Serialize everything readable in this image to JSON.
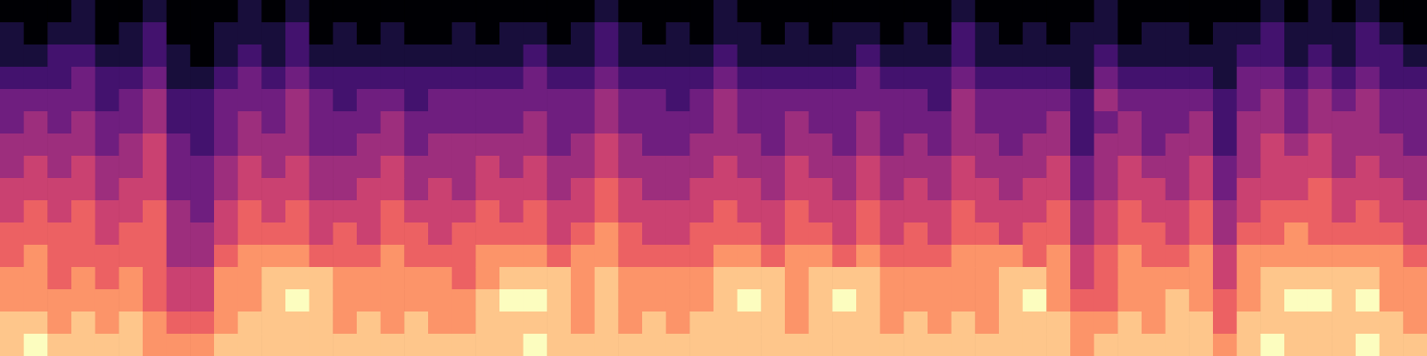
{
  "chart_data": {
    "type": "heatmap",
    "tick_labels": false,
    "values": [
      [
        0,
        0,
        0,
        1,
        0,
        0,
        1,
        0,
        0,
        0,
        1,
        0,
        1,
        0,
        0,
        0,
        0,
        0,
        0,
        0,
        0,
        0,
        0,
        0,
        0,
        1,
        0,
        0,
        0,
        0,
        1,
        0,
        0,
        0,
        0,
        0,
        0,
        0,
        0,
        0,
        1,
        0,
        0,
        0,
        0,
        0,
        1,
        0,
        0,
        0,
        0,
        0,
        0,
        1,
        0,
        1,
        0,
        1,
        0,
        0
      ],
      [
        1,
        0,
        1,
        1,
        0,
        1,
        2,
        0,
        0,
        1,
        1,
        1,
        2,
        0,
        1,
        0,
        1,
        0,
        0,
        1,
        0,
        1,
        1,
        0,
        1,
        2,
        1,
        0,
        1,
        0,
        1,
        1,
        0,
        1,
        0,
        1,
        1,
        0,
        1,
        0,
        2,
        1,
        0,
        1,
        0,
        1,
        1,
        0,
        1,
        1,
        0,
        1,
        1,
        2,
        1,
        1,
        1,
        2,
        1,
        0
      ],
      [
        1,
        1,
        2,
        2,
        1,
        1,
        2,
        1,
        0,
        1,
        2,
        1,
        2,
        1,
        1,
        1,
        1,
        1,
        1,
        1,
        1,
        1,
        2,
        1,
        1,
        2,
        1,
        1,
        1,
        1,
        2,
        1,
        1,
        1,
        1,
        1,
        2,
        1,
        1,
        1,
        2,
        1,
        1,
        1,
        1,
        1,
        2,
        1,
        1,
        1,
        1,
        1,
        2,
        2,
        1,
        2,
        1,
        2,
        2,
        1
      ],
      [
        2,
        2,
        2,
        3,
        2,
        2,
        3,
        1,
        1,
        2,
        3,
        2,
        3,
        2,
        2,
        2,
        2,
        2,
        2,
        2,
        2,
        2,
        3,
        2,
        2,
        3,
        2,
        2,
        2,
        2,
        3,
        2,
        2,
        2,
        2,
        2,
        3,
        2,
        2,
        2,
        3,
        2,
        2,
        2,
        2,
        1,
        3,
        2,
        2,
        2,
        2,
        1,
        3,
        3,
        2,
        3,
        2,
        3,
        2,
        2
      ],
      [
        3,
        3,
        3,
        3,
        2,
        3,
        4,
        2,
        2,
        3,
        3,
        3,
        4,
        3,
        2,
        3,
        3,
        2,
        3,
        3,
        3,
        3,
        3,
        3,
        3,
        4,
        3,
        3,
        2,
        3,
        4,
        3,
        3,
        3,
        3,
        3,
        3,
        3,
        3,
        2,
        4,
        3,
        3,
        3,
        3,
        2,
        4,
        3,
        3,
        3,
        3,
        2,
        3,
        4,
        3,
        4,
        3,
        4,
        3,
        3
      ],
      [
        3,
        4,
        3,
        4,
        3,
        3,
        4,
        2,
        2,
        3,
        4,
        3,
        4,
        3,
        3,
        3,
        4,
        3,
        3,
        3,
        3,
        3,
        4,
        3,
        3,
        4,
        3,
        3,
        3,
        3,
        4,
        3,
        3,
        4,
        3,
        3,
        4,
        3,
        3,
        3,
        4,
        3,
        3,
        3,
        4,
        2,
        3,
        4,
        3,
        3,
        4,
        2,
        4,
        4,
        3,
        4,
        4,
        4,
        3,
        3
      ],
      [
        4,
        4,
        4,
        4,
        3,
        4,
        5,
        3,
        2,
        3,
        4,
        4,
        4,
        3,
        3,
        4,
        4,
        3,
        4,
        4,
        4,
        4,
        4,
        3,
        4,
        5,
        4,
        3,
        3,
        4,
        4,
        4,
        3,
        4,
        4,
        3,
        4,
        3,
        4,
        3,
        4,
        4,
        3,
        4,
        4,
        2,
        4,
        4,
        3,
        4,
        4,
        2,
        4,
        5,
        4,
        5,
        4,
        4,
        4,
        3
      ],
      [
        4,
        5,
        4,
        5,
        4,
        4,
        5,
        3,
        3,
        4,
        5,
        4,
        5,
        4,
        4,
        4,
        5,
        4,
        4,
        4,
        5,
        4,
        5,
        4,
        4,
        5,
        4,
        4,
        4,
        4,
        5,
        4,
        4,
        5,
        4,
        4,
        5,
        4,
        4,
        4,
        5,
        4,
        4,
        4,
        5,
        3,
        4,
        5,
        4,
        4,
        5,
        3,
        4,
        5,
        5,
        5,
        4,
        5,
        4,
        4
      ],
      [
        5,
        5,
        5,
        5,
        4,
        5,
        5,
        3,
        3,
        4,
        5,
        5,
        5,
        4,
        4,
        5,
        5,
        4,
        5,
        4,
        5,
        5,
        5,
        4,
        5,
        6,
        5,
        4,
        4,
        5,
        5,
        5,
        4,
        5,
        5,
        4,
        5,
        4,
        5,
        4,
        5,
        5,
        4,
        5,
        5,
        3,
        4,
        5,
        5,
        4,
        5,
        3,
        5,
        5,
        5,
        6,
        5,
        5,
        5,
        4
      ],
      [
        5,
        6,
        5,
        6,
        5,
        5,
        6,
        4,
        3,
        5,
        6,
        5,
        6,
        5,
        5,
        5,
        6,
        5,
        5,
        5,
        6,
        5,
        6,
        5,
        5,
        6,
        5,
        5,
        5,
        5,
        6,
        5,
        5,
        6,
        5,
        5,
        6,
        5,
        5,
        5,
        6,
        5,
        5,
        5,
        6,
        4,
        5,
        6,
        5,
        5,
        6,
        4,
        5,
        6,
        6,
        6,
        5,
        6,
        5,
        5
      ],
      [
        6,
        6,
        6,
        6,
        5,
        6,
        6,
        4,
        4,
        5,
        6,
        6,
        6,
        5,
        6,
        5,
        6,
        6,
        5,
        6,
        6,
        6,
        6,
        5,
        6,
        7,
        6,
        5,
        5,
        6,
        6,
        6,
        5,
        6,
        6,
        5,
        6,
        5,
        6,
        5,
        6,
        6,
        5,
        6,
        6,
        4,
        5,
        6,
        6,
        5,
        6,
        4,
        6,
        6,
        7,
        6,
        6,
        6,
        6,
        5
      ],
      [
        6,
        7,
        6,
        6,
        6,
        6,
        6,
        4,
        4,
        6,
        7,
        7,
        7,
        6,
        6,
        6,
        7,
        6,
        6,
        6,
        7,
        7,
        7,
        6,
        7,
        7,
        6,
        6,
        6,
        6,
        7,
        7,
        6,
        7,
        7,
        6,
        7,
        6,
        6,
        6,
        7,
        7,
        7,
        6,
        7,
        5,
        6,
        7,
        6,
        6,
        7,
        5,
        7,
        7,
        7,
        7,
        7,
        7,
        7,
        6
      ],
      [
        7,
        7,
        6,
        7,
        6,
        7,
        6,
        5,
        5,
        7,
        7,
        8,
        8,
        8,
        7,
        7,
        7,
        7,
        7,
        6,
        7,
        8,
        8,
        8,
        7,
        8,
        7,
        7,
        7,
        7,
        8,
        8,
        8,
        7,
        8,
        8,
        8,
        7,
        7,
        7,
        7,
        7,
        8,
        8,
        7,
        5,
        6,
        7,
        7,
        7,
        7,
        5,
        7,
        8,
        8,
        8,
        8,
        8,
        7,
        7
      ],
      [
        7,
        7,
        7,
        7,
        7,
        7,
        6,
        5,
        5,
        7,
        7,
        8,
        9,
        8,
        7,
        7,
        7,
        7,
        7,
        7,
        8,
        9,
        9,
        8,
        7,
        8,
        7,
        7,
        7,
        7,
        8,
        9,
        8,
        7,
        8,
        9,
        8,
        7,
        7,
        7,
        7,
        7,
        8,
        9,
        7,
        6,
        6,
        7,
        7,
        8,
        7,
        6,
        7,
        8,
        9,
        9,
        8,
        9,
        7,
        7
      ],
      [
        8,
        8,
        7,
        8,
        7,
        8,
        7,
        6,
        6,
        7,
        8,
        8,
        8,
        8,
        7,
        8,
        7,
        8,
        7,
        7,
        8,
        8,
        8,
        8,
        7,
        8,
        7,
        8,
        7,
        8,
        8,
        8,
        8,
        7,
        8,
        8,
        8,
        7,
        8,
        7,
        8,
        7,
        8,
        8,
        8,
        7,
        7,
        8,
        7,
        8,
        8,
        6,
        8,
        8,
        8,
        8,
        8,
        8,
        8,
        7
      ],
      [
        8,
        9,
        8,
        8,
        8,
        8,
        7,
        7,
        7,
        8,
        8,
        8,
        8,
        8,
        8,
        8,
        8,
        8,
        8,
        8,
        8,
        8,
        9,
        8,
        8,
        8,
        8,
        8,
        8,
        8,
        8,
        8,
        8,
        8,
        8,
        8,
        8,
        8,
        8,
        8,
        8,
        8,
        8,
        8,
        8,
        7,
        8,
        8,
        8,
        8,
        8,
        7,
        8,
        9,
        8,
        8,
        8,
        9,
        8,
        8
      ]
    ]
  }
}
